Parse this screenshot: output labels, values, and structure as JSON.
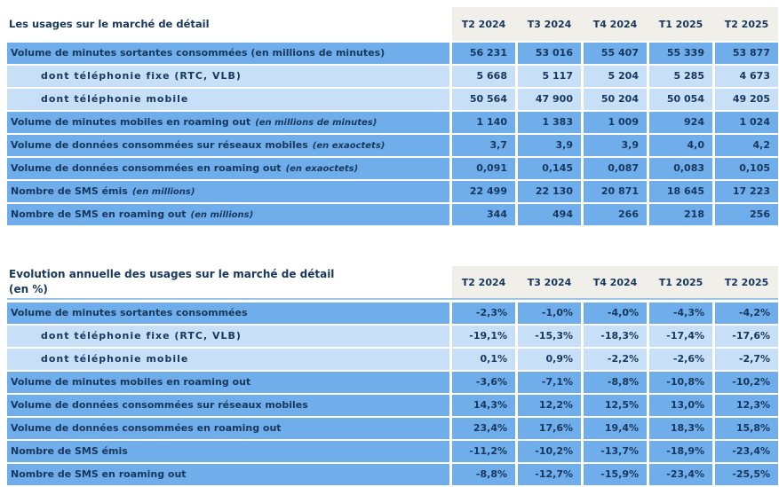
{
  "colors": {
    "text": "#17375E",
    "row_main": "#6FAEEB",
    "row_light": "#C8E0F7",
    "header_bg": "#F0EFEA",
    "header_border": "#9DC3E6"
  },
  "tables": [
    {
      "id": "usages",
      "title_lines": [
        "Les usages sur le marché de détail"
      ],
      "columns": [
        "T2 2024",
        "T3 2024",
        "T4 2024",
        "T1 2025",
        "T2 2025"
      ],
      "rows": [
        {
          "label": "Volume de minutes sortantes consommées (en millions de minutes)",
          "unit": "",
          "indent": false,
          "shade": "main",
          "values": [
            "56 231",
            "53 016",
            "55 407",
            "55 339",
            "53 877"
          ]
        },
        {
          "label": "dont téléphonie fixe (RTC, VLB)",
          "unit": "",
          "indent": true,
          "shade": "light",
          "values": [
            "5 668",
            "5 117",
            "5 204",
            "5 285",
            "4 673"
          ]
        },
        {
          "label": "dont téléphonie mobile",
          "unit": "",
          "indent": true,
          "shade": "light",
          "values": [
            "50 564",
            "47 900",
            "50 204",
            "50 054",
            "49 205"
          ]
        },
        {
          "label": "Volume de minutes mobiles en roaming out",
          "unit": "(en millions de minutes)",
          "indent": false,
          "shade": "main",
          "values": [
            "1 140",
            "1 383",
            "1 009",
            "924",
            "1 024"
          ]
        },
        {
          "label": "Volume de données consommées sur réseaux mobiles",
          "unit": "(en exaoctets)",
          "indent": false,
          "shade": "main",
          "values": [
            "3,7",
            "3,9",
            "3,9",
            "4,0",
            "4,2"
          ]
        },
        {
          "label": "Volume de données consommées en roaming out",
          "unit": "(en exaoctets)",
          "indent": false,
          "shade": "main",
          "values": [
            "0,091",
            "0,145",
            "0,087",
            "0,083",
            "0,105"
          ]
        },
        {
          "label": "Nombre de SMS émis",
          "unit": "(en millions)",
          "indent": false,
          "shade": "main",
          "values": [
            "22 499",
            "22 130",
            "20 871",
            "18 645",
            "17 223"
          ]
        },
        {
          "label": "Nombre de SMS en roaming out",
          "unit": "(en millions)",
          "indent": false,
          "shade": "main",
          "values": [
            "344",
            "494",
            "266",
            "218",
            "256"
          ]
        }
      ]
    },
    {
      "id": "evolution",
      "title_lines": [
        "Evolution annuelle des usages sur le marché de détail",
        "(en %)"
      ],
      "columns": [
        "T2 2024",
        "T3 2024",
        "T4 2024",
        "T1 2025",
        "T2 2025"
      ],
      "rows": [
        {
          "label": "Volume de minutes sortantes consommées",
          "unit": "",
          "indent": false,
          "shade": "main",
          "values": [
            "-2,3%",
            "-1,0%",
            "-4,0%",
            "-4,3%",
            "-4,2%"
          ]
        },
        {
          "label": "dont téléphonie fixe (RTC, VLB)",
          "unit": "",
          "indent": true,
          "shade": "light",
          "values": [
            "-19,1%",
            "-15,3%",
            "-18,3%",
            "-17,4%",
            "-17,6%"
          ]
        },
        {
          "label": "dont téléphonie mobile",
          "unit": "",
          "indent": true,
          "shade": "light",
          "values": [
            "0,1%",
            "0,9%",
            "-2,2%",
            "-2,6%",
            "-2,7%"
          ]
        },
        {
          "label": "Volume de minutes mobiles en roaming out",
          "unit": "",
          "indent": false,
          "shade": "main",
          "values": [
            "-3,6%",
            "-7,1%",
            "-8,8%",
            "-10,8%",
            "-10,2%"
          ]
        },
        {
          "label": "Volume de données consommées sur réseaux mobiles",
          "unit": "",
          "indent": false,
          "shade": "main",
          "values": [
            "14,3%",
            "12,2%",
            "12,5%",
            "13,0%",
            "12,3%"
          ]
        },
        {
          "label": "Volume de données consommées en roaming out",
          "unit": "",
          "indent": false,
          "shade": "main",
          "values": [
            "23,4%",
            "17,6%",
            "19,4%",
            "18,3%",
            "15,8%"
          ]
        },
        {
          "label": "Nombre de SMS émis",
          "unit": "",
          "indent": false,
          "shade": "main",
          "values": [
            "-11,2%",
            "-10,2%",
            "-13,7%",
            "-18,9%",
            "-23,4%"
          ]
        },
        {
          "label": "Nombre de SMS en roaming out",
          "unit": "",
          "indent": false,
          "shade": "main",
          "values": [
            "-8,8%",
            "-12,7%",
            "-15,9%",
            "-23,4%",
            "-25,5%"
          ]
        }
      ]
    }
  ]
}
